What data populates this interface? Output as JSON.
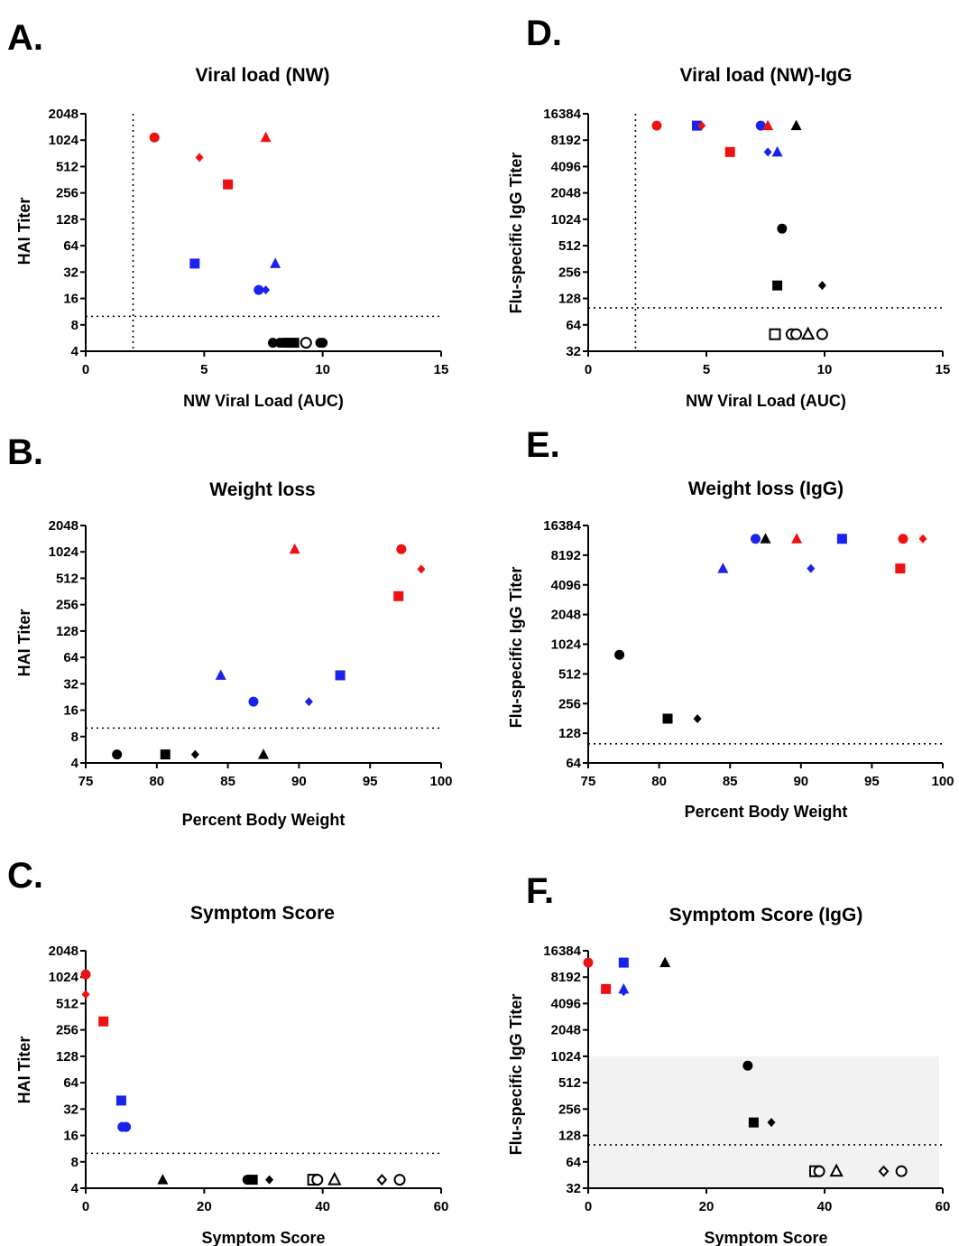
{
  "chart_data": [
    {
      "panel": "A.",
      "type": "scatter",
      "title": "Viral load (NW)",
      "xlabel": "NW Viral Load (AUC)",
      "ylabel": "HAI Titer",
      "x_scale": "linear",
      "y_scale": "log2",
      "xlim": [
        0,
        15
      ],
      "ylim": [
        4,
        2048
      ],
      "xticks": [
        "0",
        "5",
        "10",
        "15"
      ],
      "yticks": [
        "4",
        "8",
        "16",
        "32",
        "64",
        "128",
        "256",
        "512",
        "1024",
        "2048"
      ],
      "ref_lines": [
        {
          "axis": "x",
          "value": 2
        },
        {
          "axis": "y",
          "value": 10
        }
      ],
      "points": [
        {
          "x": 2.9,
          "y": 1100,
          "shape": "circle",
          "color": "#ee1111",
          "filled": true
        },
        {
          "x": 4.8,
          "y": 650,
          "shape": "diamond",
          "color": "#ee1111",
          "filled": true
        },
        {
          "x": 7.6,
          "y": 1100,
          "shape": "triangle",
          "color": "#ee1111",
          "filled": true
        },
        {
          "x": 6.0,
          "y": 320,
          "shape": "square",
          "color": "#ee1111",
          "filled": true
        },
        {
          "x": 4.6,
          "y": 40,
          "shape": "square",
          "color": "#1a22ee",
          "filled": true
        },
        {
          "x": 8.0,
          "y": 40,
          "shape": "triangle",
          "color": "#1a22ee",
          "filled": true
        },
        {
          "x": 7.3,
          "y": 20,
          "shape": "circle",
          "color": "#1a22ee",
          "filled": true
        },
        {
          "x": 7.6,
          "y": 20,
          "shape": "diamond",
          "color": "#1a22ee",
          "filled": true
        },
        {
          "x": 7.9,
          "y": 5,
          "shape": "circle",
          "color": "#000000",
          "filled": true
        },
        {
          "x": 8.2,
          "y": 5,
          "shape": "circle",
          "color": "#000000",
          "filled": true
        },
        {
          "x": 8.5,
          "y": 5,
          "shape": "square",
          "color": "#000000",
          "filled": true
        },
        {
          "x": 8.8,
          "y": 5,
          "shape": "square",
          "color": "#000000",
          "filled": true
        },
        {
          "x": 9.3,
          "y": 5,
          "shape": "circle",
          "color": "#000000",
          "filled": false
        },
        {
          "x": 9.9,
          "y": 5,
          "shape": "circle",
          "color": "#000000",
          "filled": true
        },
        {
          "x": 10.0,
          "y": 5,
          "shape": "circle",
          "color": "#000000",
          "filled": true
        }
      ]
    },
    {
      "panel": "B.",
      "type": "scatter",
      "title": "Weight loss",
      "xlabel": "Percent Body Weight",
      "ylabel": "HAI Titer",
      "x_scale": "linear",
      "y_scale": "log2",
      "xlim": [
        75,
        100
      ],
      "ylim": [
        4,
        2048
      ],
      "xticks": [
        "75",
        "80",
        "85",
        "90",
        "95",
        "100"
      ],
      "yticks": [
        "4",
        "8",
        "16",
        "32",
        "64",
        "128",
        "256",
        "512",
        "1024",
        "2048"
      ],
      "ref_lines": [
        {
          "axis": "y",
          "value": 10
        }
      ],
      "points": [
        {
          "x": 89.7,
          "y": 1100,
          "shape": "triangle",
          "color": "#ee1111",
          "filled": true
        },
        {
          "x": 97.2,
          "y": 1100,
          "shape": "circle",
          "color": "#ee1111",
          "filled": true
        },
        {
          "x": 98.6,
          "y": 650,
          "shape": "diamond",
          "color": "#ee1111",
          "filled": true
        },
        {
          "x": 97.0,
          "y": 320,
          "shape": "square",
          "color": "#ee1111",
          "filled": true
        },
        {
          "x": 84.5,
          "y": 40,
          "shape": "triangle",
          "color": "#1a22ee",
          "filled": true
        },
        {
          "x": 92.9,
          "y": 40,
          "shape": "square",
          "color": "#1a22ee",
          "filled": true
        },
        {
          "x": 86.8,
          "y": 20,
          "shape": "circle",
          "color": "#1a22ee",
          "filled": true
        },
        {
          "x": 90.7,
          "y": 20,
          "shape": "diamond",
          "color": "#1a22ee",
          "filled": true
        },
        {
          "x": 77.2,
          "y": 5,
          "shape": "circle",
          "color": "#000000",
          "filled": true
        },
        {
          "x": 80.6,
          "y": 5,
          "shape": "square",
          "color": "#000000",
          "filled": true
        },
        {
          "x": 82.7,
          "y": 5,
          "shape": "diamond",
          "color": "#000000",
          "filled": true
        },
        {
          "x": 87.5,
          "y": 5,
          "shape": "triangle",
          "color": "#000000",
          "filled": true
        }
      ]
    },
    {
      "panel": "C.",
      "type": "scatter",
      "title": "Symptom Score",
      "xlabel": "Symptom Score",
      "ylabel": "HAI Titer",
      "x_scale": "linear",
      "y_scale": "log2",
      "xlim": [
        0,
        60
      ],
      "ylim": [
        4,
        2048
      ],
      "xticks": [
        "0",
        "20",
        "40",
        "60"
      ],
      "yticks": [
        "4",
        "8",
        "16",
        "32",
        "64",
        "128",
        "256",
        "512",
        "1024",
        "2048"
      ],
      "ref_lines": [
        {
          "axis": "y",
          "value": 10
        }
      ],
      "points": [
        {
          "x": 0,
          "y": 1100,
          "shape": "circle",
          "color": "#ee1111",
          "filled": true
        },
        {
          "x": 0,
          "y": 650,
          "shape": "diamond",
          "color": "#ee1111",
          "filled": true
        },
        {
          "x": 3,
          "y": 320,
          "shape": "square",
          "color": "#ee1111",
          "filled": true
        },
        {
          "x": 6,
          "y": 40,
          "shape": "square",
          "color": "#1a22ee",
          "filled": true
        },
        {
          "x": 6.2,
          "y": 20,
          "shape": "circle",
          "color": "#1a22ee",
          "filled": true
        },
        {
          "x": 6.8,
          "y": 20,
          "shape": "circle",
          "color": "#1a22ee",
          "filled": true
        },
        {
          "x": 13,
          "y": 5,
          "shape": "triangle",
          "color": "#000000",
          "filled": true
        },
        {
          "x": 27.3,
          "y": 5,
          "shape": "circle",
          "color": "#000000",
          "filled": true
        },
        {
          "x": 27.8,
          "y": 5,
          "shape": "circle",
          "color": "#000000",
          "filled": true
        },
        {
          "x": 28.2,
          "y": 5,
          "shape": "square",
          "color": "#000000",
          "filled": true
        },
        {
          "x": 31,
          "y": 5,
          "shape": "diamond",
          "color": "#000000",
          "filled": true
        },
        {
          "x": 38.4,
          "y": 5,
          "shape": "square",
          "color": "#000000",
          "filled": false
        },
        {
          "x": 39.1,
          "y": 5,
          "shape": "circle",
          "color": "#000000",
          "filled": false
        },
        {
          "x": 42,
          "y": 5,
          "shape": "triangle",
          "color": "#000000",
          "filled": false
        },
        {
          "x": 50,
          "y": 5,
          "shape": "diamond",
          "color": "#000000",
          "filled": false
        },
        {
          "x": 53,
          "y": 5,
          "shape": "circle",
          "color": "#000000",
          "filled": false
        }
      ]
    },
    {
      "panel": "D.",
      "type": "scatter",
      "title": "Viral load (NW)-IgG",
      "xlabel": "NW Viral Load (AUC)",
      "ylabel": "Flu-specific IgG Titer",
      "x_scale": "linear",
      "y_scale": "log2",
      "xlim": [
        0,
        15
      ],
      "ylim": [
        32,
        16384
      ],
      "xticks": [
        "0",
        "5",
        "10",
        "15"
      ],
      "yticks": [
        "32",
        "64",
        "128",
        "256",
        "512",
        "1024",
        "2048",
        "4096",
        "8192",
        "16384"
      ],
      "ref_lines": [
        {
          "axis": "x",
          "value": 2
        },
        {
          "axis": "y",
          "value": 100
        }
      ],
      "points": [
        {
          "x": 2.9,
          "y": 12000,
          "shape": "circle",
          "color": "#ee1111",
          "filled": true
        },
        {
          "x": 4.6,
          "y": 12000,
          "shape": "square",
          "color": "#1a22ee",
          "filled": true
        },
        {
          "x": 4.8,
          "y": 12000,
          "shape": "diamond",
          "color": "#ee1111",
          "filled": true
        },
        {
          "x": 7.3,
          "y": 12000,
          "shape": "circle",
          "color": "#1a22ee",
          "filled": true
        },
        {
          "x": 7.6,
          "y": 12000,
          "shape": "triangle",
          "color": "#ee1111",
          "filled": true
        },
        {
          "x": 8.8,
          "y": 12000,
          "shape": "triangle",
          "color": "#000000",
          "filled": true
        },
        {
          "x": 6.0,
          "y": 6000,
          "shape": "square",
          "color": "#ee1111",
          "filled": true
        },
        {
          "x": 7.6,
          "y": 6000,
          "shape": "diamond",
          "color": "#1a22ee",
          "filled": true
        },
        {
          "x": 8.0,
          "y": 6000,
          "shape": "triangle",
          "color": "#1a22ee",
          "filled": true
        },
        {
          "x": 8.2,
          "y": 800,
          "shape": "circle",
          "color": "#000000",
          "filled": true
        },
        {
          "x": 8.0,
          "y": 180,
          "shape": "square",
          "color": "#000000",
          "filled": true
        },
        {
          "x": 9.9,
          "y": 180,
          "shape": "diamond",
          "color": "#000000",
          "filled": true
        },
        {
          "x": 7.9,
          "y": 50,
          "shape": "square",
          "color": "#000000",
          "filled": false
        },
        {
          "x": 8.6,
          "y": 50,
          "shape": "circle",
          "color": "#000000",
          "filled": false
        },
        {
          "x": 8.8,
          "y": 50,
          "shape": "circle",
          "color": "#000000",
          "filled": false
        },
        {
          "x": 9.3,
          "y": 50,
          "shape": "triangle",
          "color": "#000000",
          "filled": false
        },
        {
          "x": 9.9,
          "y": 50,
          "shape": "circle",
          "color": "#000000",
          "filled": false
        }
      ]
    },
    {
      "panel": "E.",
      "type": "scatter",
      "title": "Weight loss (IgG)",
      "xlabel": "Percent Body Weight",
      "ylabel": "Flu-specific IgG Titer",
      "x_scale": "linear",
      "y_scale": "log2",
      "xlim": [
        75,
        100
      ],
      "ylim": [
        64,
        16384
      ],
      "xticks": [
        "75",
        "80",
        "85",
        "90",
        "95",
        "100"
      ],
      "yticks": [
        "64",
        "128",
        "256",
        "512",
        "1024",
        "2048",
        "4096",
        "8192",
        "16384"
      ],
      "ref_lines": [
        {
          "axis": "y",
          "value": 100
        }
      ],
      "points": [
        {
          "x": 86.8,
          "y": 12000,
          "shape": "circle",
          "color": "#1a22ee",
          "filled": true
        },
        {
          "x": 87.5,
          "y": 12000,
          "shape": "triangle",
          "color": "#000000",
          "filled": true
        },
        {
          "x": 89.7,
          "y": 12000,
          "shape": "triangle",
          "color": "#ee1111",
          "filled": true
        },
        {
          "x": 92.9,
          "y": 12000,
          "shape": "square",
          "color": "#1a22ee",
          "filled": true
        },
        {
          "x": 97.2,
          "y": 12000,
          "shape": "circle",
          "color": "#ee1111",
          "filled": true
        },
        {
          "x": 98.6,
          "y": 12000,
          "shape": "diamond",
          "color": "#ee1111",
          "filled": true
        },
        {
          "x": 84.5,
          "y": 6000,
          "shape": "triangle",
          "color": "#1a22ee",
          "filled": true
        },
        {
          "x": 90.7,
          "y": 6000,
          "shape": "diamond",
          "color": "#1a22ee",
          "filled": true
        },
        {
          "x": 97.0,
          "y": 6000,
          "shape": "square",
          "color": "#ee1111",
          "filled": true
        },
        {
          "x": 77.2,
          "y": 800,
          "shape": "circle",
          "color": "#000000",
          "filled": true
        },
        {
          "x": 80.6,
          "y": 180,
          "shape": "square",
          "color": "#000000",
          "filled": true
        },
        {
          "x": 82.7,
          "y": 180,
          "shape": "diamond",
          "color": "#000000",
          "filled": true
        }
      ]
    },
    {
      "panel": "F.",
      "type": "scatter",
      "title": "Symptom Score (IgG)",
      "xlabel": "Symptom Score",
      "ylabel": "Flu-specific IgG Titer",
      "x_scale": "linear",
      "y_scale": "log2",
      "xlim": [
        0,
        60
      ],
      "ylim": [
        32,
        16384
      ],
      "xticks": [
        "0",
        "20",
        "40",
        "60"
      ],
      "yticks": [
        "32",
        "64",
        "128",
        "256",
        "512",
        "1024",
        "2048",
        "4096",
        "8192",
        "16384"
      ],
      "ref_lines": [
        {
          "axis": "y",
          "value": 100
        }
      ],
      "shaded_band": {
        "y_from": 32,
        "y_to": 1024,
        "color": "#f2f2f2"
      },
      "points": [
        {
          "x": 0,
          "y": 12000,
          "shape": "circle",
          "color": "#ee1111",
          "filled": true
        },
        {
          "x": 6,
          "y": 12000,
          "shape": "square",
          "color": "#1a22ee",
          "filled": true
        },
        {
          "x": 13,
          "y": 12000,
          "shape": "triangle",
          "color": "#000000",
          "filled": true
        },
        {
          "x": 3,
          "y": 6000,
          "shape": "square",
          "color": "#ee1111",
          "filled": true
        },
        {
          "x": 6,
          "y": 6000,
          "shape": "triangle",
          "color": "#1a22ee",
          "filled": true
        },
        {
          "x": 6,
          "y": 5600,
          "shape": "diamond",
          "color": "#1a22ee",
          "filled": true
        },
        {
          "x": 27,
          "y": 800,
          "shape": "circle",
          "color": "#000000",
          "filled": true
        },
        {
          "x": 28,
          "y": 180,
          "shape": "square",
          "color": "#000000",
          "filled": true
        },
        {
          "x": 31,
          "y": 180,
          "shape": "diamond",
          "color": "#000000",
          "filled": true
        },
        {
          "x": 38.4,
          "y": 50,
          "shape": "square",
          "color": "#000000",
          "filled": false
        },
        {
          "x": 39.1,
          "y": 50,
          "shape": "circle",
          "color": "#000000",
          "filled": false
        },
        {
          "x": 42,
          "y": 50,
          "shape": "triangle",
          "color": "#000000",
          "filled": false
        },
        {
          "x": 50,
          "y": 50,
          "shape": "diamond",
          "color": "#000000",
          "filled": false
        },
        {
          "x": 53,
          "y": 50,
          "shape": "circle",
          "color": "#000000",
          "filled": false
        }
      ]
    }
  ]
}
